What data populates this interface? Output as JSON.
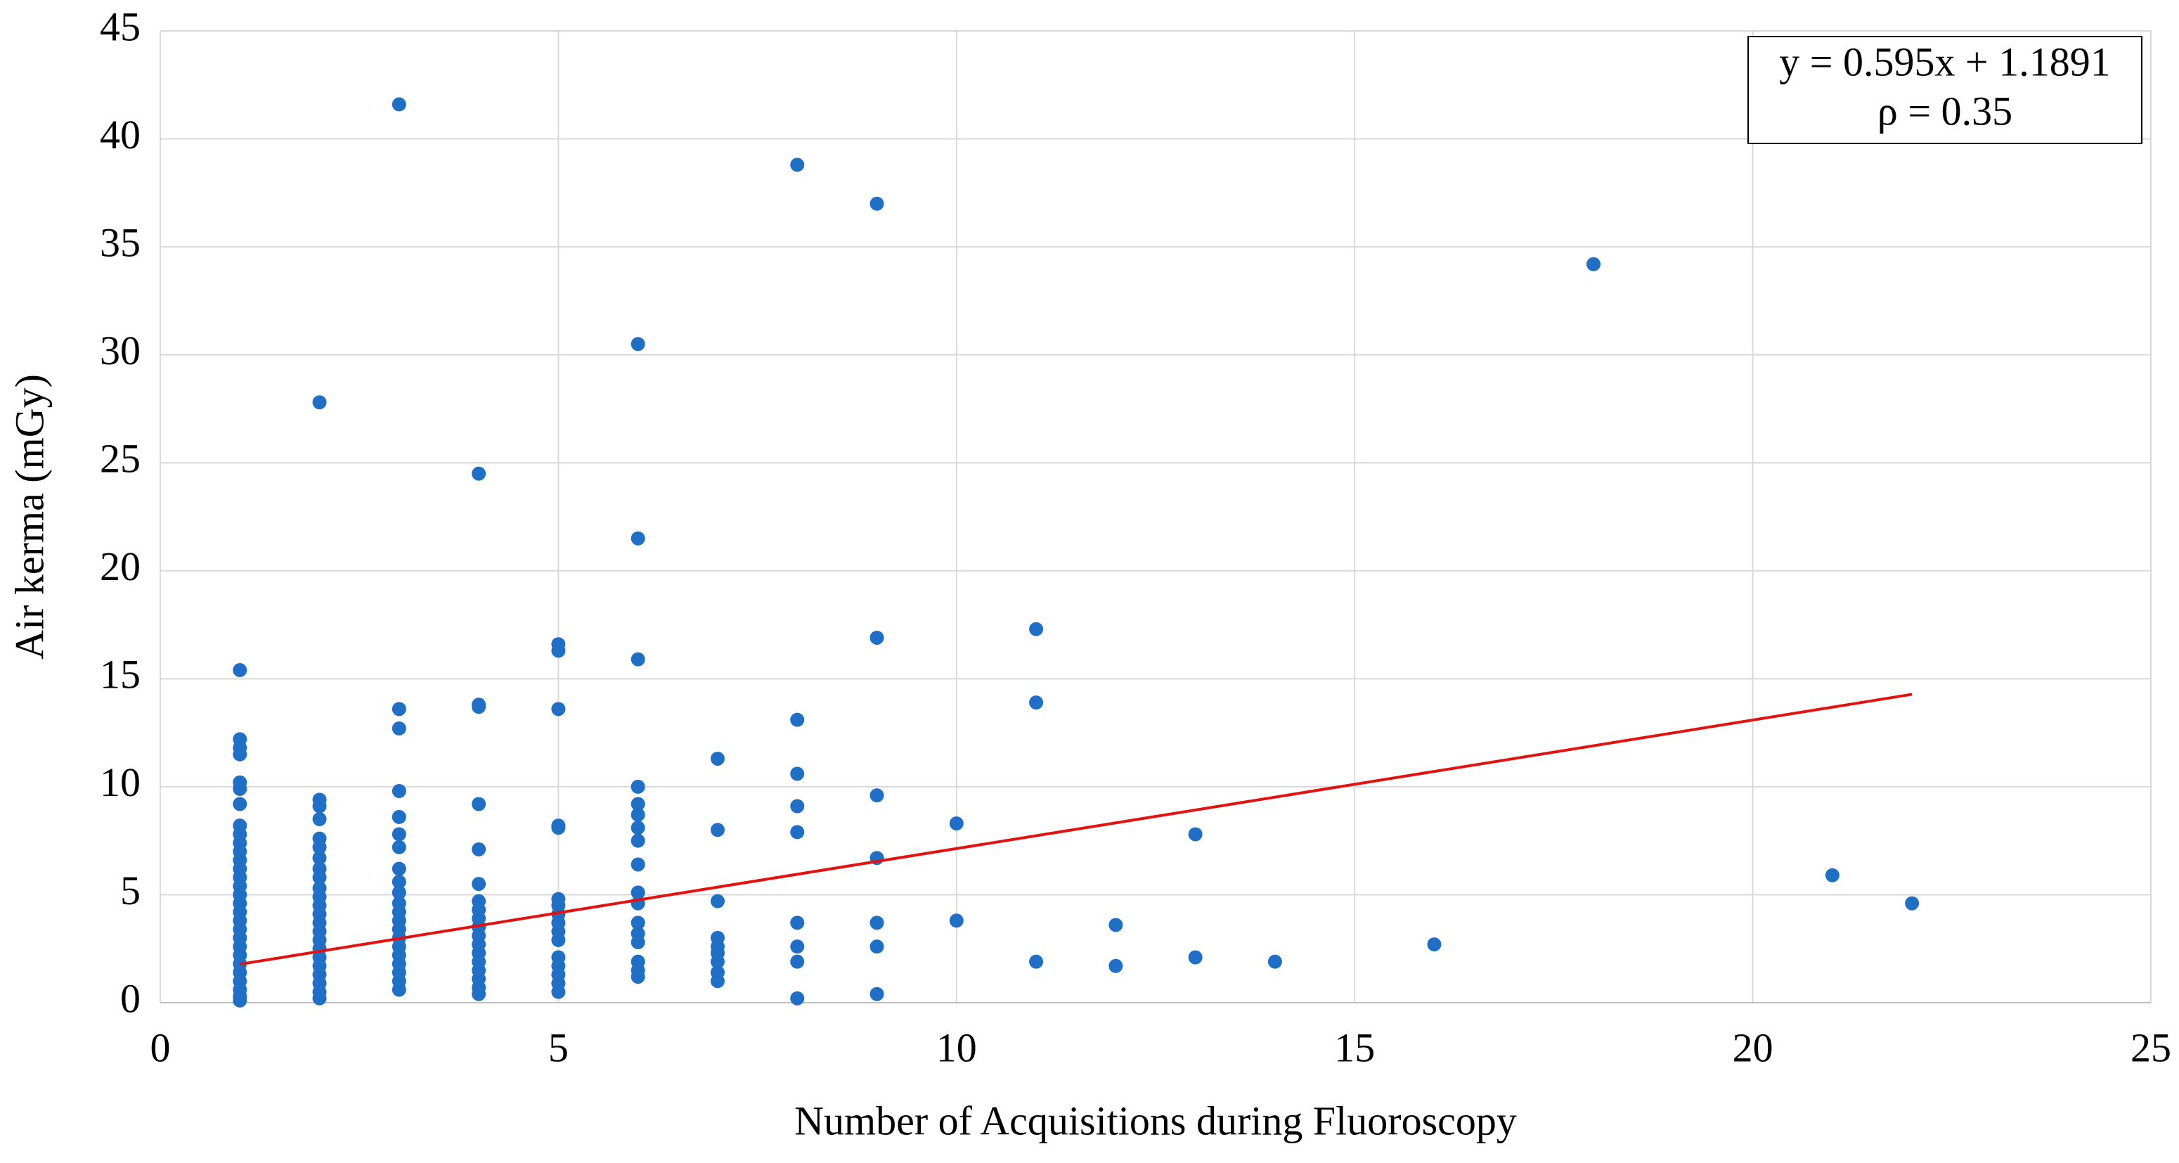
{
  "chart_data": {
    "type": "scatter",
    "xlabel": "Number of Acquisitions during Fluoroscopy",
    "ylabel": "Air kerma (mGy)",
    "annotation": [
      "y = 0.595x + 1.1891",
      "ρ = 0.35"
    ],
    "xlim": [
      0,
      25
    ],
    "xticks": [
      0,
      5,
      10,
      15,
      20,
      25
    ],
    "ylim": [
      0,
      45
    ],
    "yticks": [
      0,
      5,
      10,
      15,
      20,
      25,
      30,
      35,
      40,
      45
    ],
    "grid": true,
    "series": [
      {
        "color": "#1f6fc6",
        "x": [
          1,
          1,
          1,
          1,
          1,
          1,
          1,
          1,
          1,
          1,
          1,
          1,
          1,
          1,
          1,
          1,
          1,
          1,
          1,
          1,
          1,
          1,
          1,
          1,
          1,
          1,
          1,
          1,
          1,
          2,
          2,
          2,
          2,
          2,
          2,
          2,
          2,
          2,
          2,
          2,
          2,
          2,
          2,
          2,
          2,
          2,
          2,
          2,
          2,
          2,
          2,
          2,
          3,
          3,
          3,
          3,
          3,
          3,
          3,
          3,
          3,
          3,
          3,
          3,
          3,
          3,
          3,
          3,
          3,
          3,
          3,
          3,
          3,
          4,
          4,
          4,
          4,
          4,
          4,
          4,
          4,
          4,
          4,
          4,
          4,
          4,
          4,
          4,
          4,
          4,
          4,
          5,
          5,
          5,
          5,
          5,
          5,
          5,
          5,
          5,
          5,
          5,
          5,
          5,
          5,
          5,
          5,
          6,
          6,
          6,
          6,
          6,
          6,
          6,
          6,
          6,
          6,
          6,
          6,
          6,
          6,
          6,
          6,
          6,
          7,
          7,
          7,
          7,
          7,
          7,
          7,
          7,
          7,
          8,
          8,
          8,
          8,
          8,
          8,
          8,
          8,
          8,
          9,
          9,
          9,
          9,
          9,
          9,
          9,
          10,
          10,
          11,
          11,
          11,
          12,
          12,
          13,
          13,
          14,
          16,
          18,
          21,
          22
        ],
        "values": [
          15.4,
          12.2,
          11.8,
          11.5,
          10.2,
          9.9,
          9.2,
          8.2,
          7.8,
          7.4,
          7.0,
          6.6,
          6.2,
          5.8,
          5.4,
          5.0,
          4.6,
          4.2,
          3.8,
          3.4,
          3.0,
          2.6,
          2.2,
          1.8,
          1.4,
          1.0,
          0.6,
          0.3,
          0.1,
          27.8,
          9.4,
          9.1,
          8.5,
          7.6,
          7.2,
          6.7,
          6.2,
          5.8,
          5.3,
          4.9,
          4.5,
          4.1,
          3.7,
          3.3,
          2.9,
          2.5,
          2.1,
          1.7,
          1.3,
          0.9,
          0.5,
          0.2,
          41.6,
          13.6,
          12.7,
          9.8,
          8.6,
          7.8,
          7.2,
          6.2,
          5.6,
          5.1,
          4.6,
          4.2,
          3.8,
          3.4,
          3.0,
          2.6,
          2.2,
          1.8,
          1.4,
          1.0,
          0.6,
          24.5,
          13.8,
          13.7,
          9.2,
          7.1,
          5.5,
          4.7,
          4.3,
          3.9,
          3.5,
          3.1,
          2.7,
          2.3,
          1.9,
          1.5,
          1.1,
          0.7,
          0.4,
          16.6,
          16.3,
          13.6,
          8.2,
          8.1,
          4.8,
          4.5,
          4.1,
          3.7,
          3.3,
          2.9,
          2.1,
          1.7,
          1.3,
          0.9,
          0.5,
          30.5,
          21.5,
          15.9,
          10.0,
          9.2,
          8.7,
          8.1,
          7.5,
          6.4,
          5.1,
          4.6,
          3.7,
          3.2,
          2.8,
          1.9,
          1.5,
          1.2,
          11.3,
          8.0,
          4.7,
          3.0,
          2.6,
          2.3,
          1.9,
          1.4,
          1.0,
          38.8,
          13.1,
          10.6,
          9.1,
          7.9,
          3.7,
          2.6,
          1.9,
          0.2,
          37.0,
          16.9,
          9.6,
          6.7,
          3.7,
          2.6,
          0.4,
          8.3,
          3.8,
          17.3,
          13.9,
          1.9,
          3.6,
          1.7,
          7.8,
          2.1,
          1.9,
          2.7,
          34.2,
          5.9,
          4.6
        ]
      },
      {
        "type": "line",
        "color": "#e3110f",
        "x": [
          1,
          22
        ],
        "values": [
          1.78,
          14.28
        ]
      }
    ]
  }
}
